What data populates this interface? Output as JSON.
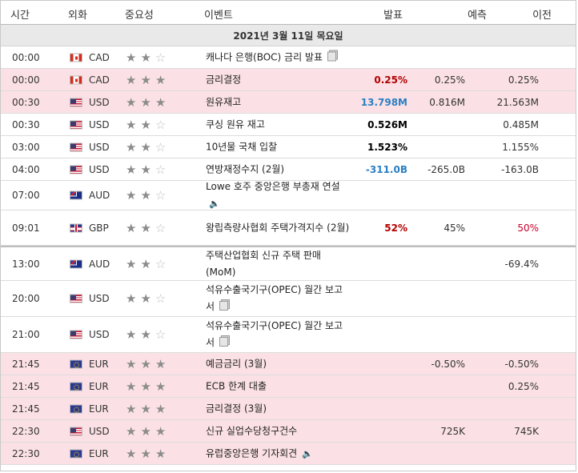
{
  "header": {
    "time": "시간",
    "currency": "외화",
    "importance": "중요성",
    "event": "이벤트",
    "actual": "발표",
    "forecast": "예측",
    "previous": "이전"
  },
  "date_label": "2021년 3월 11일 목요일",
  "colors": {
    "highlight_row": "#fbe1e5",
    "actual_better": "#b30000",
    "actual_worse": "#2a7fc3"
  },
  "events": [
    {
      "time": "00:00",
      "flag": "canada-flag-icon",
      "currency": "CAD",
      "stars": 2,
      "event": "캐나다 은행(BOC) 금리 발표",
      "icon": "document-icon",
      "actual": "",
      "forecast": "",
      "previous": ""
    },
    {
      "time": "00:00",
      "flag": "canada-flag-icon",
      "currency": "CAD",
      "stars": 3,
      "event": "금리결정",
      "icon": "",
      "actual": "0.25%",
      "forecast": "0.25%",
      "previous": "0.25%"
    },
    {
      "time": "00:30",
      "flag": "us-flag-icon",
      "currency": "USD",
      "stars": 3,
      "event": "원유재고",
      "icon": "",
      "actual": "13.798M",
      "forecast": "0.816M",
      "previous": "21.563M"
    },
    {
      "time": "00:30",
      "flag": "us-flag-icon",
      "currency": "USD",
      "stars": 2,
      "event": "쿠싱 원유 재고",
      "icon": "",
      "actual": "0.526M",
      "forecast": "",
      "previous": "0.485M"
    },
    {
      "time": "03:00",
      "flag": "us-flag-icon",
      "currency": "USD",
      "stars": 2,
      "event": "10년물 국채 입찰",
      "icon": "",
      "actual": "1.523%",
      "forecast": "",
      "previous": "1.155%"
    },
    {
      "time": "04:00",
      "flag": "us-flag-icon",
      "currency": "USD",
      "stars": 2,
      "event": "연방재정수지 (2월)",
      "icon": "",
      "actual": "-311.0B",
      "forecast": "-265.0B",
      "previous": "-163.0B"
    },
    {
      "time": "07:00",
      "flag": "australia-flag-icon",
      "currency": "AUD",
      "stars": 2,
      "event": "Lowe 호주 중앙은행 부총재 연설",
      "icon": "speaker-icon",
      "actual": "",
      "forecast": "",
      "previous": ""
    },
    {
      "time": "09:01",
      "flag": "uk-flag-icon",
      "currency": "GBP",
      "stars": 2,
      "event": "왕립측량사협회 주택가격지수 (2월)",
      "icon": "",
      "actual": "52%",
      "forecast": "45%",
      "previous": "50%"
    },
    {
      "time": "13:00",
      "flag": "australia-flag-icon",
      "currency": "AUD",
      "stars": 2,
      "event": "주택산업협회 신규 주택 판매 (MoM)",
      "icon": "",
      "actual": "",
      "forecast": "",
      "previous": "-69.4%"
    },
    {
      "time": "20:00",
      "flag": "us-flag-icon",
      "currency": "USD",
      "stars": 2,
      "event": "석유수출국기구(OPEC) 월간 보고서",
      "icon": "document-icon",
      "actual": "",
      "forecast": "",
      "previous": ""
    },
    {
      "time": "21:00",
      "flag": "us-flag-icon",
      "currency": "USD",
      "stars": 2,
      "event": "석유수출국기구(OPEC) 월간 보고서",
      "icon": "document-icon",
      "actual": "",
      "forecast": "",
      "previous": ""
    },
    {
      "time": "21:45",
      "flag": "eu-flag-icon",
      "currency": "EUR",
      "stars": 3,
      "event": "예금금리 (3월)",
      "icon": "",
      "actual": "",
      "forecast": "-0.50%",
      "previous": "-0.50%"
    },
    {
      "time": "21:45",
      "flag": "eu-flag-icon",
      "currency": "EUR",
      "stars": 3,
      "event": "ECB 한계 대출",
      "icon": "",
      "actual": "",
      "forecast": "",
      "previous": "0.25%"
    },
    {
      "time": "21:45",
      "flag": "eu-flag-icon",
      "currency": "EUR",
      "stars": 3,
      "event": "금리결정 (3월)",
      "icon": "",
      "actual": "",
      "forecast": "",
      "previous": ""
    },
    {
      "time": "22:30",
      "flag": "us-flag-icon",
      "currency": "USD",
      "stars": 3,
      "event": "신규 실업수당청구건수",
      "icon": "",
      "actual": "",
      "forecast": "725K",
      "previous": "745K"
    },
    {
      "time": "22:30",
      "flag": "eu-flag-icon",
      "currency": "EUR",
      "stars": 3,
      "event": "유럽중앙은행 기자회견",
      "icon": "speaker-icon",
      "actual": "",
      "forecast": "",
      "previous": ""
    }
  ]
}
